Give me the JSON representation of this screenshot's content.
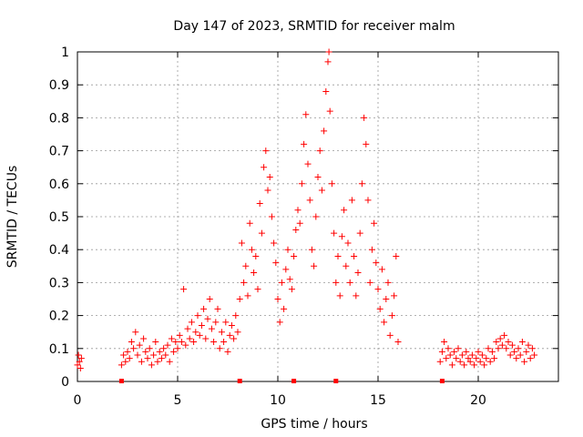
{
  "chart_data": {
    "type": "scatter",
    "title": "Day 147 of 2023, SRMTID for receiver malm",
    "xlabel": "GPS time / hours",
    "ylabel": "SRMTID / TECUs",
    "xlim": [
      0,
      24
    ],
    "ylim": [
      0,
      1
    ],
    "xticks": [
      0,
      5,
      10,
      15,
      20
    ],
    "yticks": [
      0,
      0.1,
      0.2,
      0.3,
      0.4,
      0.5,
      0.6,
      0.7,
      0.8,
      0.9,
      1
    ],
    "xtick_labels": [
      "0",
      "5",
      "10",
      "15",
      "20"
    ],
    "ytick_labels": [
      "0",
      "0.1",
      "0.2",
      "0.3",
      "0.4",
      "0.5",
      "0.6",
      "0.7",
      "0.8",
      "0.9",
      "1"
    ],
    "grid": true,
    "marker": "plus",
    "color": "#ff0000",
    "gap_markers_x": [
      2.2,
      8.1,
      10.8,
      12.9,
      18.2
    ],
    "series": [
      {
        "name": "SRMTID",
        "points": [
          [
            0.0,
            0.05
          ],
          [
            0.05,
            0.08
          ],
          [
            0.1,
            0.06
          ],
          [
            0.15,
            0.04
          ],
          [
            0.2,
            0.07
          ],
          [
            2.2,
            0.05
          ],
          [
            2.3,
            0.08
          ],
          [
            2.4,
            0.06
          ],
          [
            2.5,
            0.09
          ],
          [
            2.6,
            0.07
          ],
          [
            2.7,
            0.12
          ],
          [
            2.8,
            0.1
          ],
          [
            2.9,
            0.15
          ],
          [
            3.0,
            0.08
          ],
          [
            3.1,
            0.11
          ],
          [
            3.2,
            0.06
          ],
          [
            3.3,
            0.13
          ],
          [
            3.4,
            0.09
          ],
          [
            3.5,
            0.07
          ],
          [
            3.6,
            0.1
          ],
          [
            3.7,
            0.05
          ],
          [
            3.8,
            0.08
          ],
          [
            3.9,
            0.12
          ],
          [
            4.0,
            0.06
          ],
          [
            4.1,
            0.09
          ],
          [
            4.2,
            0.07
          ],
          [
            4.3,
            0.1
          ],
          [
            4.4,
            0.08
          ],
          [
            4.5,
            0.11
          ],
          [
            4.6,
            0.06
          ],
          [
            4.7,
            0.13
          ],
          [
            4.8,
            0.09
          ],
          [
            4.9,
            0.12
          ],
          [
            5.0,
            0.1
          ],
          [
            5.1,
            0.14
          ],
          [
            5.2,
            0.12
          ],
          [
            5.3,
            0.28
          ],
          [
            5.4,
            0.11
          ],
          [
            5.5,
            0.16
          ],
          [
            5.6,
            0.13
          ],
          [
            5.7,
            0.18
          ],
          [
            5.8,
            0.12
          ],
          [
            5.9,
            0.15
          ],
          [
            6.0,
            0.2
          ],
          [
            6.1,
            0.14
          ],
          [
            6.2,
            0.17
          ],
          [
            6.3,
            0.22
          ],
          [
            6.4,
            0.13
          ],
          [
            6.5,
            0.19
          ],
          [
            6.6,
            0.25
          ],
          [
            6.7,
            0.16
          ],
          [
            6.8,
            0.12
          ],
          [
            6.9,
            0.18
          ],
          [
            7.0,
            0.22
          ],
          [
            7.1,
            0.1
          ],
          [
            7.2,
            0.15
          ],
          [
            7.3,
            0.12
          ],
          [
            7.4,
            0.18
          ],
          [
            7.5,
            0.09
          ],
          [
            7.6,
            0.14
          ],
          [
            7.7,
            0.17
          ],
          [
            7.8,
            0.13
          ],
          [
            7.9,
            0.2
          ],
          [
            8.0,
            0.15
          ],
          [
            8.1,
            0.25
          ],
          [
            8.2,
            0.42
          ],
          [
            8.3,
            0.3
          ],
          [
            8.4,
            0.35
          ],
          [
            8.5,
            0.26
          ],
          [
            8.6,
            0.48
          ],
          [
            8.7,
            0.4
          ],
          [
            8.8,
            0.33
          ],
          [
            8.9,
            0.38
          ],
          [
            9.0,
            0.28
          ],
          [
            9.1,
            0.54
          ],
          [
            9.2,
            0.45
          ],
          [
            9.3,
            0.65
          ],
          [
            9.4,
            0.7
          ],
          [
            9.5,
            0.58
          ],
          [
            9.6,
            0.62
          ],
          [
            9.7,
            0.5
          ],
          [
            9.8,
            0.42
          ],
          [
            9.9,
            0.36
          ],
          [
            10.0,
            0.25
          ],
          [
            10.1,
            0.18
          ],
          [
            10.2,
            0.3
          ],
          [
            10.3,
            0.22
          ],
          [
            10.4,
            0.34
          ],
          [
            10.5,
            0.4
          ],
          [
            10.6,
            0.31
          ],
          [
            10.7,
            0.28
          ],
          [
            10.8,
            0.38
          ],
          [
            10.9,
            0.46
          ],
          [
            11.0,
            0.52
          ],
          [
            11.1,
            0.48
          ],
          [
            11.2,
            0.6
          ],
          [
            11.3,
            0.72
          ],
          [
            11.4,
            0.81
          ],
          [
            11.5,
            0.66
          ],
          [
            11.6,
            0.55
          ],
          [
            11.7,
            0.4
          ],
          [
            11.8,
            0.35
          ],
          [
            11.9,
            0.5
          ],
          [
            12.0,
            0.62
          ],
          [
            12.1,
            0.7
          ],
          [
            12.2,
            0.58
          ],
          [
            12.3,
            0.76
          ],
          [
            12.4,
            0.88
          ],
          [
            12.5,
            0.97
          ],
          [
            12.55,
            1.0
          ],
          [
            12.6,
            0.82
          ],
          [
            12.7,
            0.6
          ],
          [
            12.8,
            0.45
          ],
          [
            12.9,
            0.3
          ],
          [
            13.0,
            0.38
          ],
          [
            13.1,
            0.26
          ],
          [
            13.2,
            0.44
          ],
          [
            13.3,
            0.52
          ],
          [
            13.4,
            0.35
          ],
          [
            13.5,
            0.42
          ],
          [
            13.6,
            0.3
          ],
          [
            13.7,
            0.55
          ],
          [
            13.8,
            0.38
          ],
          [
            13.9,
            0.26
          ],
          [
            14.0,
            0.33
          ],
          [
            14.1,
            0.45
          ],
          [
            14.2,
            0.6
          ],
          [
            14.3,
            0.8
          ],
          [
            14.4,
            0.72
          ],
          [
            14.5,
            0.55
          ],
          [
            14.6,
            0.3
          ],
          [
            14.7,
            0.4
          ],
          [
            14.8,
            0.48
          ],
          [
            14.9,
            0.36
          ],
          [
            15.0,
            0.28
          ],
          [
            15.1,
            0.22
          ],
          [
            15.2,
            0.34
          ],
          [
            15.3,
            0.18
          ],
          [
            15.4,
            0.25
          ],
          [
            15.5,
            0.3
          ],
          [
            15.6,
            0.14
          ],
          [
            15.7,
            0.2
          ],
          [
            15.8,
            0.26
          ],
          [
            15.9,
            0.38
          ],
          [
            16.0,
            0.12
          ],
          [
            18.1,
            0.06
          ],
          [
            18.2,
            0.09
          ],
          [
            18.3,
            0.12
          ],
          [
            18.4,
            0.07
          ],
          [
            18.5,
            0.1
          ],
          [
            18.6,
            0.08
          ],
          [
            18.7,
            0.05
          ],
          [
            18.8,
            0.09
          ],
          [
            18.9,
            0.07
          ],
          [
            19.0,
            0.1
          ],
          [
            19.1,
            0.06
          ],
          [
            19.2,
            0.08
          ],
          [
            19.3,
            0.05
          ],
          [
            19.4,
            0.09
          ],
          [
            19.5,
            0.07
          ],
          [
            19.6,
            0.06
          ],
          [
            19.7,
            0.08
          ],
          [
            19.8,
            0.05
          ],
          [
            19.9,
            0.07
          ],
          [
            20.0,
            0.09
          ],
          [
            20.1,
            0.06
          ],
          [
            20.2,
            0.08
          ],
          [
            20.3,
            0.05
          ],
          [
            20.4,
            0.07
          ],
          [
            20.5,
            0.1
          ],
          [
            20.6,
            0.06
          ],
          [
            20.7,
            0.09
          ],
          [
            20.8,
            0.07
          ],
          [
            20.9,
            0.12
          ],
          [
            21.0,
            0.1
          ],
          [
            21.1,
            0.13
          ],
          [
            21.2,
            0.11
          ],
          [
            21.3,
            0.14
          ],
          [
            21.4,
            0.1
          ],
          [
            21.5,
            0.12
          ],
          [
            21.6,
            0.08
          ],
          [
            21.7,
            0.11
          ],
          [
            21.8,
            0.09
          ],
          [
            21.9,
            0.07
          ],
          [
            22.0,
            0.1
          ],
          [
            22.1,
            0.08
          ],
          [
            22.2,
            0.12
          ],
          [
            22.3,
            0.06
          ],
          [
            22.4,
            0.09
          ],
          [
            22.5,
            0.11
          ],
          [
            22.6,
            0.07
          ],
          [
            22.7,
            0.1
          ],
          [
            22.8,
            0.08
          ]
        ]
      }
    ]
  }
}
